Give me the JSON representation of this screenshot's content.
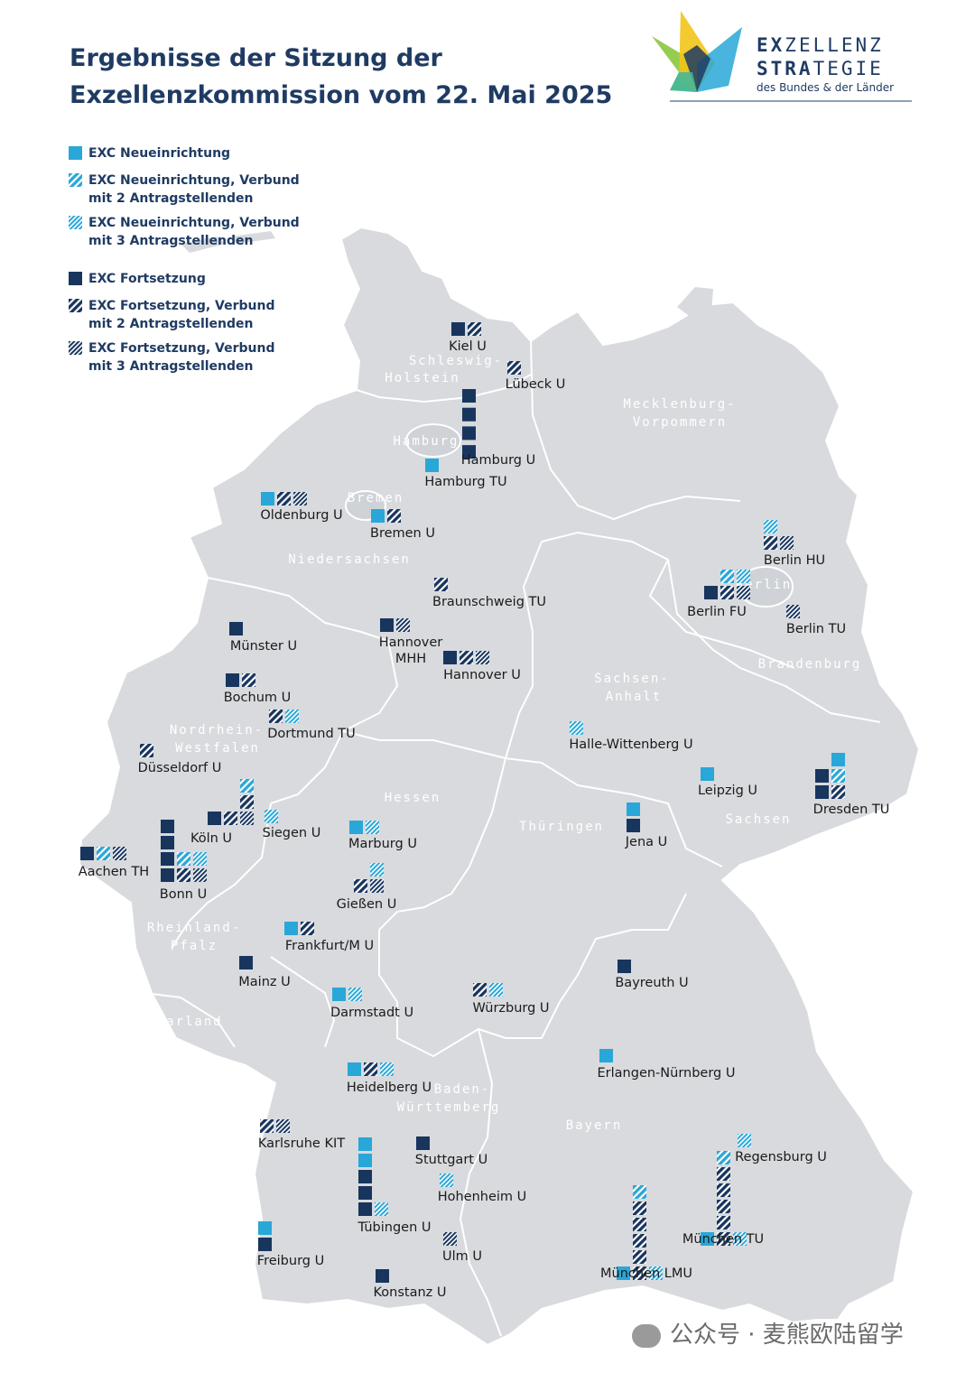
{
  "title": {
    "line1": "Ergebnisse der Sitzung der",
    "line2": "Exzellenzkommission vom 22. Mai 2025"
  },
  "logo": {
    "word1_bold": "EX",
    "word1_rest": "ZELLENZ",
    "word2_bold": "STRA",
    "word2_rest": "TEGIE",
    "sub": "des Bundes & der Länder",
    "emblem_icon": "crown-emblem-icon"
  },
  "colors": {
    "new": "#29a7d8",
    "continuation": "#18355e",
    "map_fill": "#d8dadd",
    "title": "#1f3b63"
  },
  "legend": [
    {
      "text": "EXC Neueinrichtung",
      "kind": "nS"
    },
    {
      "text": "EXC Neueinrichtung, Verbund mit 2 Antragstellenden",
      "kind": "n2"
    },
    {
      "text": "EXC Neueinrichtung, Verbund mit 3 Antragstellenden",
      "kind": "n3"
    },
    {
      "text": "EXC Fortsetzung",
      "kind": "cS"
    },
    {
      "text": "EXC Fortsetzung, Verbund mit 2 Antragstellenden",
      "kind": "c2"
    },
    {
      "text": "EXC Fortsetzung, Verbund mit 3 Antragstellenden",
      "kind": "c3"
    }
  ],
  "states": [
    {
      "name": "Schleswig-"
    },
    {
      "name": "Holstein"
    },
    {
      "name": "Hamburg"
    },
    {
      "name": "Mecklenburg-"
    },
    {
      "name": "Vorpommern"
    },
    {
      "name": "Bremen"
    },
    {
      "name": "Niedersachsen"
    },
    {
      "name": "Berlin"
    },
    {
      "name": "Brandenburg"
    },
    {
      "name": "Sachsen-"
    },
    {
      "name": "Anhalt"
    },
    {
      "name": "Nordrhein-"
    },
    {
      "name": "Westfalen"
    },
    {
      "name": "Hessen"
    },
    {
      "name": "Thüringen"
    },
    {
      "name": "Sachsen"
    },
    {
      "name": "Rheinland-"
    },
    {
      "name": "Pfalz"
    },
    {
      "name": "Saarland"
    },
    {
      "name": "Baden-"
    },
    {
      "name": "Württemberg"
    },
    {
      "name": "Bayern"
    }
  ],
  "universities": [
    {
      "name": "Kiel U",
      "clusters": [
        [
          "cS",
          "c2"
        ]
      ]
    },
    {
      "name": "Lübeck U",
      "clusters": [
        [
          "c2"
        ]
      ]
    },
    {
      "name": "Hamburg U",
      "clusters": [
        [
          "cS"
        ],
        [
          "cS"
        ],
        [
          "cS"
        ],
        [
          "cS"
        ]
      ]
    },
    {
      "name": "Hamburg TU",
      "clusters": [
        [
          "nS"
        ]
      ]
    },
    {
      "name": "Oldenburg U",
      "clusters": [
        [
          "nS",
          "c2",
          "c3"
        ]
      ]
    },
    {
      "name": "Bremen U",
      "clusters": [
        [
          "nS",
          "c2"
        ]
      ]
    },
    {
      "name": "Braunschweig TU",
      "clusters": [
        [
          "c2"
        ]
      ]
    },
    {
      "name": "Berlin HU",
      "clusters": [
        [
          "n3"
        ],
        [
          "c2",
          "c3"
        ]
      ]
    },
    {
      "name": "Berlin FU",
      "clusters": [
        [
          "n2",
          "n3"
        ],
        [
          "cS",
          "c2",
          "c3"
        ]
      ]
    },
    {
      "name": "Berlin TU",
      "clusters": [
        [
          "c3"
        ]
      ]
    },
    {
      "name": "Münster U",
      "clusters": [
        [
          "cS"
        ]
      ]
    },
    {
      "name": "Hannover MHH",
      "clusters": [
        [
          "cS",
          "c3"
        ]
      ]
    },
    {
      "name": "Hannover U",
      "clusters": [
        [
          "cS",
          "c2",
          "c3"
        ]
      ]
    },
    {
      "name": "Bochum U",
      "clusters": [
        [
          "cS",
          "c2"
        ]
      ]
    },
    {
      "name": "Dortmund TU",
      "clusters": [
        [
          "c2",
          "n3"
        ]
      ]
    },
    {
      "name": "Halle-Wittenberg U",
      "clusters": [
        [
          "n3"
        ]
      ]
    },
    {
      "name": "Düsseldorf U",
      "clusters": [
        [
          "c2"
        ]
      ]
    },
    {
      "name": "Leipzig U",
      "clusters": [
        [
          "nS"
        ]
      ]
    },
    {
      "name": "Dresden TU",
      "clusters": [
        [
          "nS"
        ],
        [
          "cS",
          "n2"
        ],
        [
          "cS",
          "c2"
        ]
      ]
    },
    {
      "name": "Köln U",
      "clusters": [
        [
          "n2"
        ],
        [
          "c2"
        ],
        [
          "cS",
          "c2",
          "c3"
        ]
      ]
    },
    {
      "name": "Siegen U",
      "clusters": [
        [
          "n3"
        ]
      ]
    },
    {
      "name": "Marburg U",
      "clusters": [
        [
          "nS",
          "n3"
        ]
      ]
    },
    {
      "name": "Jena U",
      "clusters": [
        [
          "nS"
        ],
        [
          "cS"
        ]
      ]
    },
    {
      "name": "Aachen TH",
      "clusters": [
        [
          "cS",
          "n2",
          "c3"
        ]
      ]
    },
    {
      "name": "Bonn U",
      "clusters": [
        [
          "cS"
        ],
        [
          "cS"
        ],
        [
          "cS",
          "n2",
          "n3"
        ],
        [
          "cS",
          "c2",
          "c3"
        ]
      ]
    },
    {
      "name": "Gießen U",
      "clusters": [
        [
          "n3"
        ],
        [
          "c2",
          "c3"
        ]
      ]
    },
    {
      "name": "Frankfurt/M U",
      "clusters": [
        [
          "nS",
          "c2"
        ]
      ]
    },
    {
      "name": "Mainz U",
      "clusters": [
        [
          "cS"
        ]
      ]
    },
    {
      "name": "Bayreuth U",
      "clusters": [
        [
          "cS"
        ]
      ]
    },
    {
      "name": "Darmstadt U",
      "clusters": [
        [
          "nS",
          "n3"
        ]
      ]
    },
    {
      "name": "Würzburg U",
      "clusters": [
        [
          "c2",
          "n3"
        ]
      ]
    },
    {
      "name": "Erlangen-Nürnberg U",
      "clusters": [
        [
          "nS"
        ]
      ]
    },
    {
      "name": "Heidelberg U",
      "clusters": [
        [
          "nS",
          "c2",
          "n3"
        ]
      ]
    },
    {
      "name": "Karlsruhe KIT",
      "clusters": [
        [
          "c2",
          "c3"
        ]
      ]
    },
    {
      "name": "Stuttgart U",
      "clusters": [
        [
          "cS"
        ]
      ]
    },
    {
      "name": "Regensburg U",
      "clusters": [
        [
          "n3"
        ]
      ]
    },
    {
      "name": "Hohenheim U",
      "clusters": [
        [
          "n3"
        ]
      ]
    },
    {
      "name": "Tübingen U",
      "clusters": [
        [
          "nS"
        ],
        [
          "nS"
        ],
        [
          "cS"
        ],
        [
          "cS"
        ],
        [
          "cS",
          "n3"
        ]
      ]
    },
    {
      "name": "München TU",
      "clusters": [
        [
          "n2"
        ],
        [
          "c2"
        ],
        [
          "c2"
        ],
        [
          "c2"
        ],
        [
          "c2"
        ],
        [
          "nS",
          "c2",
          "n3"
        ]
      ]
    },
    {
      "name": "München LMU",
      "clusters": [
        [
          "n2"
        ],
        [
          "c2"
        ],
        [
          "c2"
        ],
        [
          "c2"
        ],
        [
          "c2"
        ],
        [
          "nS",
          "c2",
          "n3"
        ]
      ]
    },
    {
      "name": "Ulm U",
      "clusters": [
        [
          "c3"
        ]
      ]
    },
    {
      "name": "Freiburg U",
      "clusters": [
        [
          "nS"
        ],
        [
          "cS"
        ]
      ]
    },
    {
      "name": "Konstanz U",
      "clusters": [
        [
          "cS"
        ]
      ]
    }
  ],
  "watermark": {
    "text": "公众号 · 麦熊欧陆留学",
    "icon": "wechat-icon"
  }
}
